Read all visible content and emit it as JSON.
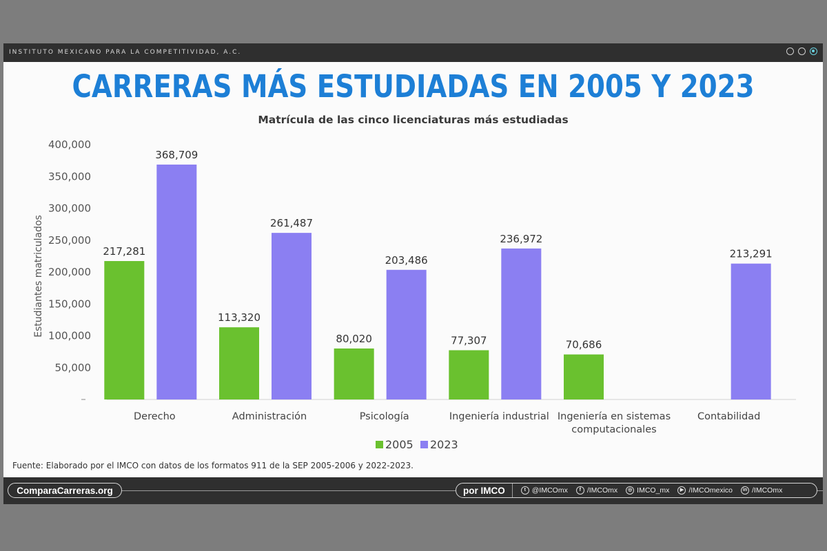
{
  "header": {
    "org_name": "INSTITUTO MEXICANO PARA LA COMPETITIVIDAD, A.C.",
    "title": "CARRERAS MÁS ESTUDIADAS EN 2005 Y 2023",
    "subtitle": "Matrícula de las cinco licenciaturas más estudiadas"
  },
  "chart_data": {
    "type": "bar",
    "title": "Matrícula de las cinco licenciaturas más estudiadas",
    "ylabel": "Estudiantes matriculados",
    "xlabel": "",
    "ylim": [
      0,
      400000
    ],
    "yticks": [
      {
        "value": 50000,
        "label": "50,000"
      },
      {
        "value": 100000,
        "label": "100,000"
      },
      {
        "value": 150000,
        "label": "150,000"
      },
      {
        "value": 200000,
        "label": "200,000"
      },
      {
        "value": 250000,
        "label": "250,000"
      },
      {
        "value": 300000,
        "label": "300,000"
      },
      {
        "value": 350000,
        "label": "350,000"
      },
      {
        "value": 400000,
        "label": "400,000"
      }
    ],
    "categories": [
      [
        "Derecho"
      ],
      [
        "Administración"
      ],
      [
        "Psicología"
      ],
      [
        "Ingeniería industrial"
      ],
      [
        "Ingeniería en sistemas",
        "computacionales"
      ],
      [
        "Contabilidad"
      ]
    ],
    "series": [
      {
        "name": "2005",
        "color": "#6ac12f",
        "values": [
          217281,
          113320,
          80020,
          77307,
          70686,
          null
        ],
        "labels": [
          "217,281",
          "113,320",
          "80,020",
          "77,307",
          "70,686",
          null
        ]
      },
      {
        "name": "2023",
        "color": "#8b7ff2",
        "values": [
          368709,
          261487,
          203486,
          236972,
          null,
          213291
        ],
        "labels": [
          "368,709",
          "261,487",
          "203,486",
          "236,972",
          null,
          "213,291"
        ]
      }
    ],
    "legend_position": "bottom-center",
    "grid": false
  },
  "footer": {
    "source": "Fuente: Elaborado por el IMCO con datos de los formatos 911 de la SEP 2005-2006 y 2022-2023.",
    "website": "ComparaCarreras.org",
    "by": "por IMCO",
    "socials": [
      {
        "icon": "twitter-icon",
        "glyph": "t",
        "handle": "@IMCOmx"
      },
      {
        "icon": "facebook-icon",
        "glyph": "f",
        "handle": "/IMCOmx"
      },
      {
        "icon": "instagram-icon",
        "glyph": "◎",
        "handle": "IMCO_mx"
      },
      {
        "icon": "youtube-icon",
        "glyph": "▶",
        "handle": "/IMCOmexico"
      },
      {
        "icon": "linkedin-icon",
        "glyph": "in",
        "handle": "/IMCOmx"
      }
    ]
  }
}
